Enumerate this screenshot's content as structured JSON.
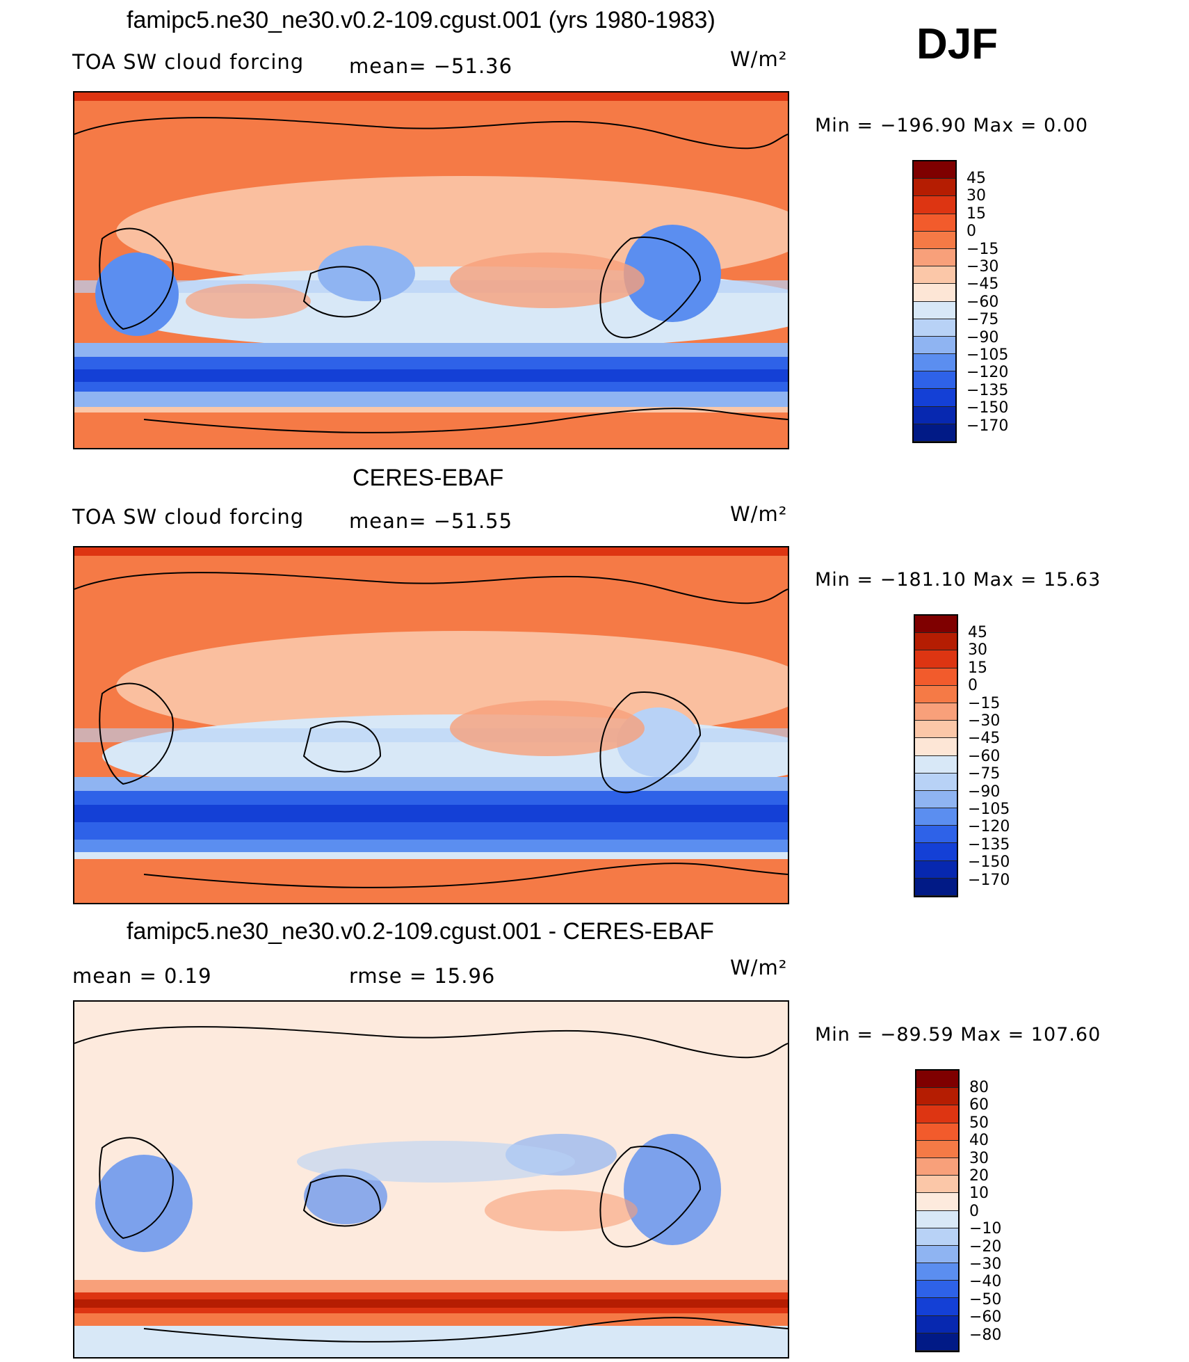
{
  "season": "DJF",
  "panels": [
    {
      "title": "famipc5.ne30_ne30.v0.2-109.cgust.001 (yrs 1980-1983)",
      "left_label": "TOA SW cloud forcing",
      "center_label": "mean= −51.36",
      "units": "W/m²",
      "minmax": "Min  =  −196.90  Max  =     0.00",
      "colorbar_ticks": [
        "45",
        "30",
        "15",
        "0",
        "−15",
        "−30",
        "−45",
        "−60",
        "−75",
        "−90",
        "−105",
        "−120",
        "−135",
        "−150",
        "−170"
      ]
    },
    {
      "title": "CERES-EBAF",
      "left_label": "TOA SW cloud forcing",
      "center_label": "mean= −51.55",
      "units": "W/m²",
      "minmax": "Min  =  −181.10  Max  =    15.63",
      "colorbar_ticks": [
        "45",
        "30",
        "15",
        "0",
        "−15",
        "−30",
        "−45",
        "−60",
        "−75",
        "−90",
        "−105",
        "−120",
        "−135",
        "−150",
        "−170"
      ]
    },
    {
      "title": "famipc5.ne30_ne30.v0.2-109.cgust.001 - CERES-EBAF",
      "left_label": "mean  =     0.19",
      "center_label": "rmse  =    15.96",
      "units": "W/m²",
      "minmax": "Min  =  −89.59  Max  =  107.60",
      "colorbar_ticks": [
        "80",
        "60",
        "50",
        "40",
        "30",
        "20",
        "10",
        "0",
        "−10",
        "−20",
        "−30",
        "−40",
        "−50",
        "−60",
        "−80"
      ]
    }
  ],
  "colors": {
    "abs_scale": [
      "#7f0000",
      "#b51d02",
      "#dd3512",
      "#f25b2c",
      "#f57a46",
      "#f8a07a",
      "#fbc7a8",
      "#fde6d6",
      "#d8e8f7",
      "#b8d2f6",
      "#8fb4f2",
      "#5b8ef0",
      "#2e62e8",
      "#1440d6",
      "#0728b0",
      "#011a86"
    ],
    "diff_scale": [
      "#7f0000",
      "#b51d02",
      "#dd3512",
      "#f25b2c",
      "#f57a46",
      "#f8a07a",
      "#fbc7a8",
      "#fdeadd",
      "#d8e8f7",
      "#b8d2f6",
      "#8fb4f2",
      "#5b8ef0",
      "#2e62e8",
      "#1440d6",
      "#0728b0",
      "#011a86"
    ]
  },
  "chart_data": [
    {
      "type": "heatmap",
      "title": "famipc5.ne30_ne30.v0.2-109.cgust.001 (yrs 1980-1983)",
      "variable": "TOA SW cloud forcing",
      "units": "W/m2",
      "mean": -51.36,
      "min": -196.9,
      "max": 0.0,
      "contour_levels": [
        45,
        30,
        15,
        0,
        -15,
        -30,
        -45,
        -60,
        -75,
        -90,
        -105,
        -120,
        -135,
        -150,
        -170
      ]
    },
    {
      "type": "heatmap",
      "title": "CERES-EBAF",
      "variable": "TOA SW cloud forcing",
      "units": "W/m2",
      "mean": -51.55,
      "min": -181.1,
      "max": 15.63,
      "contour_levels": [
        45,
        30,
        15,
        0,
        -15,
        -30,
        -45,
        -60,
        -75,
        -90,
        -105,
        -120,
        -135,
        -150,
        -170
      ]
    },
    {
      "type": "heatmap",
      "title": "famipc5.ne30_ne30.v0.2-109.cgust.001 - CERES-EBAF",
      "units": "W/m2",
      "mean": 0.19,
      "rmse": 15.96,
      "min": -89.59,
      "max": 107.6,
      "contour_levels": [
        80,
        60,
        50,
        40,
        30,
        20,
        10,
        0,
        -10,
        -20,
        -30,
        -40,
        -50,
        -60,
        -80
      ]
    }
  ]
}
